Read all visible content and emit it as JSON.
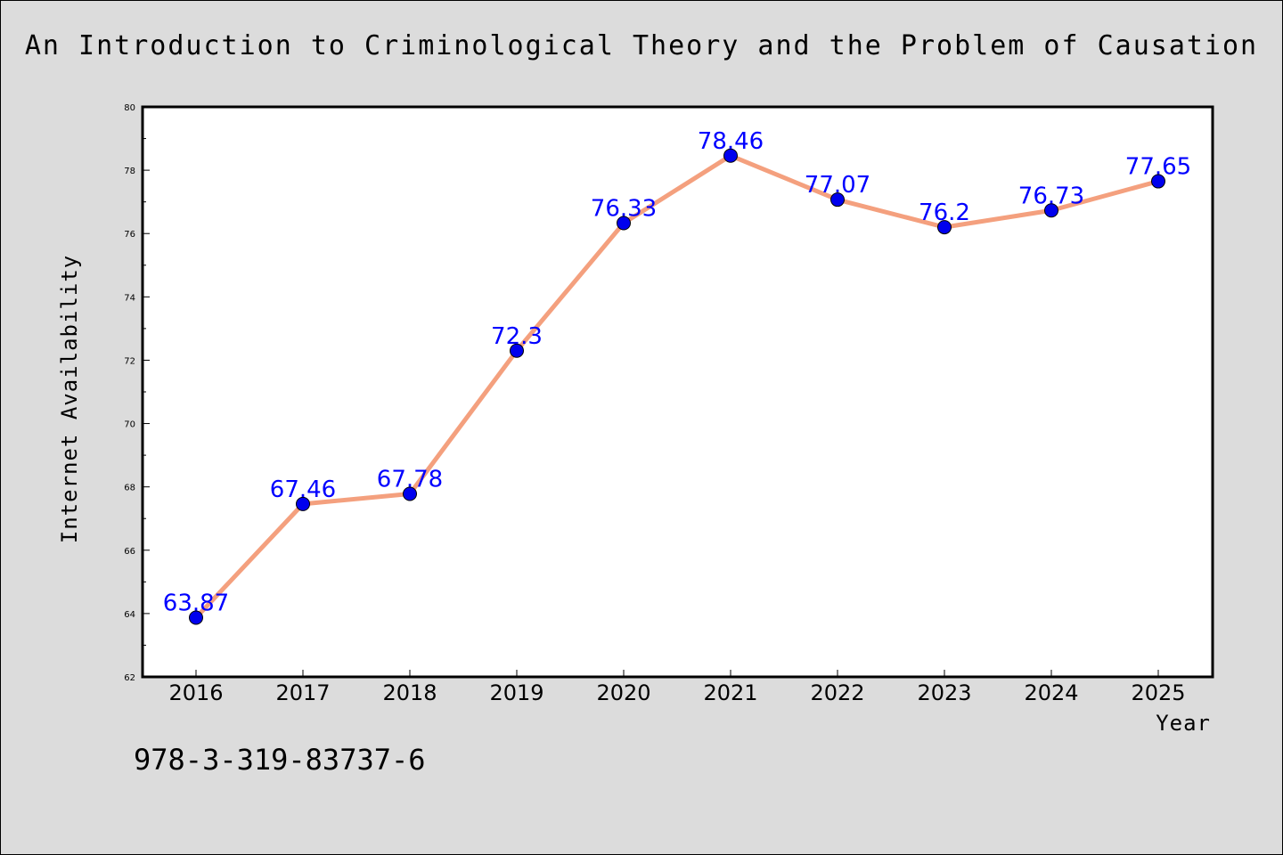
{
  "title": "An Introduction to Criminological Theory and the Problem of Causation",
  "footer_text": "978-3-319-83737-6",
  "chart_data": {
    "type": "line",
    "title": "An Introduction to Criminological Theory and the Problem of Causation",
    "xlabel": "Year",
    "ylabel": "Internet Availability",
    "categories": [
      "2016",
      "2017",
      "2018",
      "2019",
      "2020",
      "2021",
      "2022",
      "2023",
      "2024",
      "2025"
    ],
    "series": [
      {
        "values": [
          63.87,
          67.46,
          67.78,
          72.3,
          76.33,
          78.46,
          77.07,
          76.2,
          76.73,
          77.65
        ],
        "data_labels": [
          "63.87",
          "67.46",
          "67.78",
          "72.3",
          "76.33",
          "78.46",
          "77.07",
          "76.2",
          "76.73",
          "77.65"
        ],
        "line_color": "#f4a07e",
        "marker_color": "#0000ee",
        "label_color": "#0000ff"
      }
    ],
    "ylim": [
      62,
      80
    ],
    "yticks": [
      62,
      64,
      66,
      68,
      70,
      72,
      74,
      76,
      78,
      80
    ],
    "ytick_labels": [
      "62",
      "64",
      "66",
      "68",
      "70",
      "72",
      "74",
      "76",
      "78",
      "80"
    ],
    "grid": false,
    "legend": "none"
  }
}
